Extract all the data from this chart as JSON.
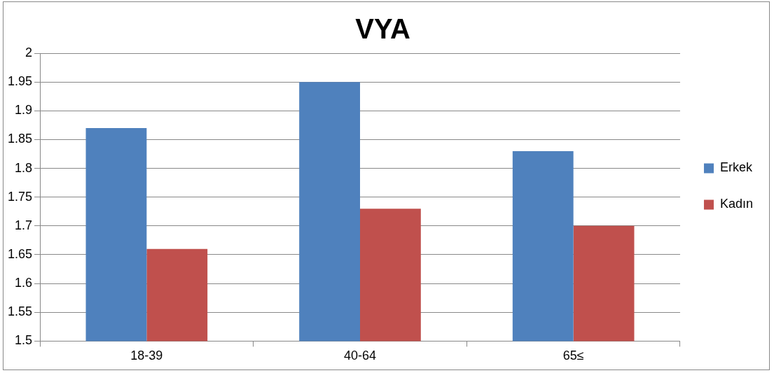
{
  "chart_data": {
    "type": "bar",
    "title": "VYA",
    "categories": [
      "18-39",
      "40-64",
      "65≤"
    ],
    "series": [
      {
        "name": "Erkek",
        "color": "#4f81bd",
        "values": [
          1.87,
          1.95,
          1.83
        ]
      },
      {
        "name": "Kadın",
        "color": "#c0504d",
        "values": [
          1.66,
          1.73,
          1.7
        ]
      }
    ],
    "ylim": [
      1.5,
      2
    ],
    "yticks": [
      1.5,
      1.55,
      1.6,
      1.65,
      1.7,
      1.75,
      1.8,
      1.85,
      1.9,
      1.95,
      2
    ],
    "grid": "y",
    "legend": "right"
  }
}
